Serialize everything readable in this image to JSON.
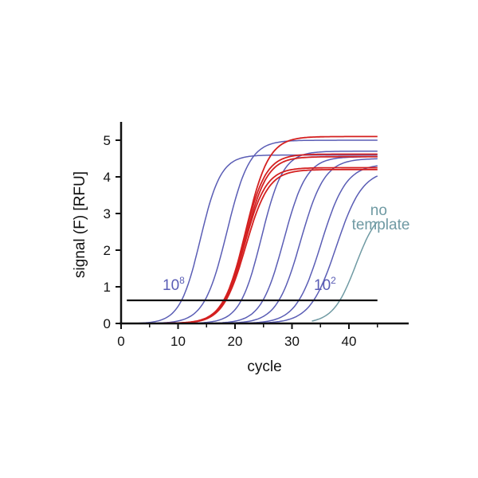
{
  "chart_data": {
    "type": "line",
    "title": "",
    "xlabel": "cycle",
    "ylabel": "signal (F) [RFU]",
    "xlim": [
      0,
      50
    ],
    "ylim": [
      0,
      5.5
    ],
    "xticks": [
      "0",
      "10",
      "20",
      "30",
      "40"
    ],
    "xtick_values": [
      0,
      10,
      20,
      30,
      40
    ],
    "yticks": [
      "0",
      "1",
      "2",
      "3",
      "4",
      "5"
    ],
    "ytick_values": [
      0,
      1,
      2,
      3,
      4,
      5
    ],
    "grid": false,
    "threshold": {
      "value": 0.63,
      "from": 1,
      "to": 45
    },
    "cycle_range": [
      1,
      45
    ],
    "annotations": [
      {
        "name": "high-label",
        "base": "10",
        "exp": "8",
        "color": "#5a5db5"
      },
      {
        "name": "low-label",
        "base": "10",
        "exp": "2",
        "color": "#5a5db5"
      },
      {
        "name": "no-template-label",
        "lines": [
          "no",
          "template"
        ],
        "color": "#6f9aa3"
      }
    ],
    "series_note": "sigmoid curves: ct = cycle where curve crosses threshold, plateau in RFU, k = steepness (cycles)",
    "series": [
      {
        "name": "standard-1e8",
        "group": "standard",
        "color": "#5a5db5",
        "ct": 10.6,
        "plateau": 4.6,
        "k": 1.8
      },
      {
        "name": "standard-1e7",
        "group": "standard",
        "color": "#5a5db5",
        "ct": 14.7,
        "plateau": 5.0,
        "k": 2.0
      },
      {
        "name": "standard-1e6",
        "group": "standard",
        "color": "#5a5db5",
        "ct": 21.1,
        "plateau": 4.7,
        "k": 1.9
      },
      {
        "name": "standard-1e5",
        "group": "standard",
        "color": "#5a5db5",
        "ct": 24.9,
        "plateau": 4.55,
        "k": 2.0
      },
      {
        "name": "standard-1e4",
        "group": "standard",
        "color": "#5a5db5",
        "ct": 27.7,
        "plateau": 4.5,
        "k": 2.1
      },
      {
        "name": "standard-1e3",
        "group": "standard",
        "color": "#5a5db5",
        "ct": 31.2,
        "plateau": 4.35,
        "k": 2.2
      },
      {
        "name": "standard-1e2",
        "group": "standard",
        "color": "#5a5db5",
        "ct": 33.8,
        "plateau": 4.2,
        "k": 2.3
      },
      {
        "name": "sample-1",
        "group": "sample",
        "color": "#d42020",
        "ct": 18.0,
        "plateau": 5.1,
        "k": 2.0
      },
      {
        "name": "sample-2",
        "group": "sample",
        "color": "#d42020",
        "ct": 18.1,
        "plateau": 4.62,
        "k": 1.9
      },
      {
        "name": "sample-3",
        "group": "sample",
        "color": "#d42020",
        "ct": 18.2,
        "plateau": 4.55,
        "k": 1.95
      },
      {
        "name": "sample-4",
        "group": "sample",
        "color": "#d42020",
        "ct": 18.3,
        "plateau": 4.25,
        "k": 1.9
      },
      {
        "name": "sample-5",
        "group": "sample",
        "color": "#d42020",
        "ct": 18.4,
        "plateau": 4.2,
        "k": 2.0
      },
      {
        "name": "no-template",
        "group": "control",
        "color": "#6f9aa3",
        "ct": 38.4,
        "plateau": 3.2,
        "k": 2.0,
        "start": 33.5
      }
    ]
  }
}
